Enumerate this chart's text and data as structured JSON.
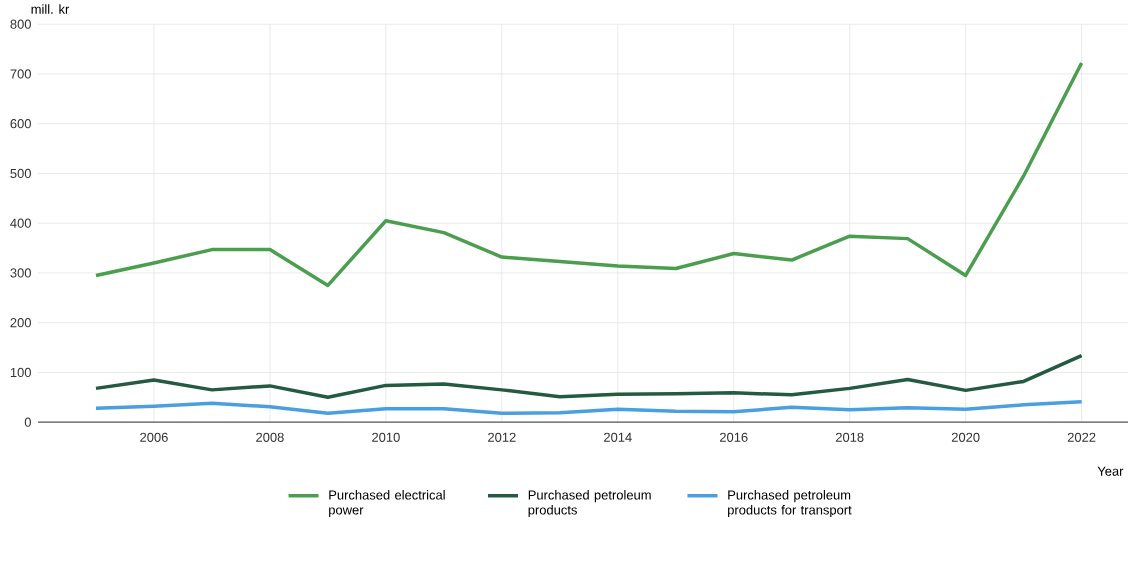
{
  "chart_data": {
    "type": "line",
    "ylabel": "mill. kr",
    "xlabel": "Year",
    "x": [
      2005,
      2006,
      2007,
      2008,
      2009,
      2010,
      2011,
      2012,
      2013,
      2014,
      2015,
      2016,
      2017,
      2018,
      2019,
      2020,
      2021,
      2022
    ],
    "series": [
      {
        "name": "Purchased electrical power",
        "color": "#4a9e4e",
        "values": [
          295,
          320,
          347,
          347,
          275,
          405,
          381,
          332,
          323,
          314,
          309,
          339,
          326,
          374,
          369,
          295,
          495,
          722
        ]
      },
      {
        "name": "Purchased petroleum products",
        "color": "#245a40",
        "values": [
          68,
          85,
          65,
          73,
          50,
          74,
          77,
          65,
          51,
          56,
          57,
          59,
          55,
          68,
          86,
          64,
          82,
          134
        ]
      },
      {
        "name": "Purchased petroleum products for transport",
        "color": "#4a9fe0",
        "values": [
          28,
          32,
          38,
          31,
          18,
          27,
          27,
          18,
          19,
          26,
          22,
          21,
          30,
          25,
          29,
          26,
          35,
          41
        ]
      }
    ],
    "xlim": [
      2004,
      2022.8
    ],
    "ylim": [
      0,
      800
    ],
    "xticks": [
      2006,
      2008,
      2010,
      2012,
      2014,
      2016,
      2018,
      2020,
      2022
    ],
    "yticks": [
      0,
      100,
      200,
      300,
      400,
      500,
      600,
      700,
      800
    ],
    "grid": true,
    "legend": "bottom",
    "marker": "none",
    "line_style": "solid"
  }
}
